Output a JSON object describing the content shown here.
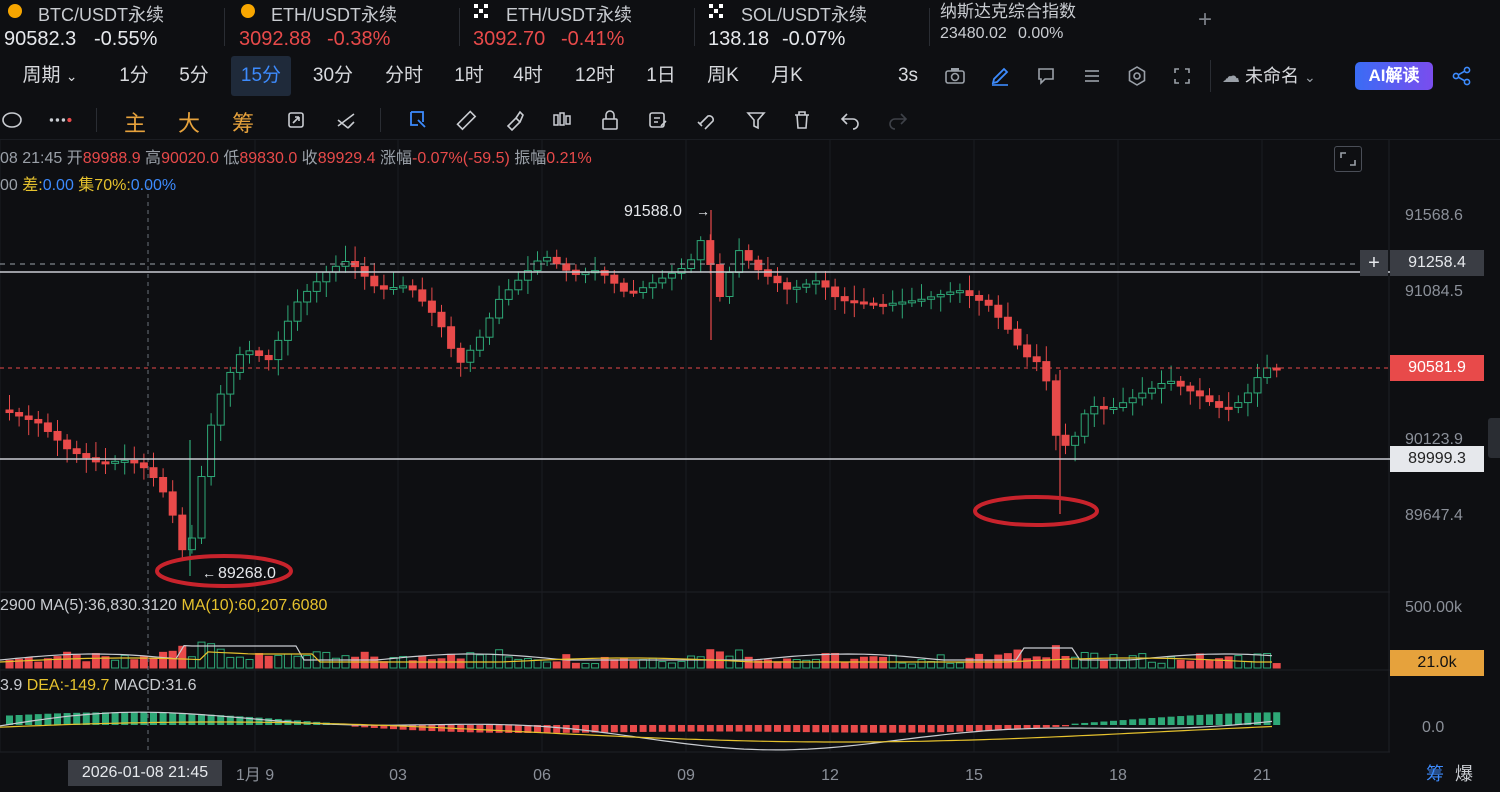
{
  "tickers": [
    {
      "name": "BTC/USDT永续",
      "price": "90582.3",
      "change": "-0.55%",
      "color": "#c9ccd1",
      "coin": "#f7a600"
    },
    {
      "name": "ETH/USDT永续",
      "price": "3092.88",
      "change": "-0.38%",
      "color": "#e84a4a",
      "coin": "#f7a600"
    },
    {
      "name": "ETH/USDT永续",
      "price": "3092.70",
      "change": "-0.41%",
      "color": "#e84a4a",
      "coin": "okx"
    },
    {
      "name": "SOL/USDT永续",
      "price": "138.18",
      "change": "-0.07%",
      "color": "#c9ccd1",
      "coin": "okx"
    },
    {
      "name": "纳斯达克综合指数",
      "price": "23480.02",
      "change": "0.00%",
      "color": "#c9ccd1",
      "coin": ""
    }
  ],
  "intervals": {
    "period_label": "周期",
    "items": [
      "1分",
      "5分",
      "15分",
      "30分",
      "分时",
      "1时",
      "4时",
      "12时",
      "1日",
      "周K",
      "月K"
    ],
    "active": "15分",
    "refresh": "3s",
    "save_name": "未命名",
    "ai_label": "AI解读"
  },
  "indicator_buttons": [
    "主",
    "大",
    "筹"
  ],
  "ohlc": {
    "time": "08 21:45",
    "open_label": "开",
    "open": "89988.9",
    "high_label": "高",
    "high": "90020.0",
    "low_label": "低",
    "low": "89830.0",
    "close_label": "收",
    "close": "89929.4",
    "chg_label": "涨幅",
    "chg": "-0.07%(-59.5)",
    "amp_label": "振幅",
    "amp": "0.21%"
  },
  "info2": {
    "prefix": "00",
    "diff_label": "差:",
    "diff": "0.00",
    "conc_label": "集70%:",
    "conc": "0.00%"
  },
  "price_axis": [
    "91568.6",
    "91084.5",
    "90123.9",
    "89647.4"
  ],
  "price_tags": {
    "line1": "91258.4",
    "current": "90581.9",
    "line2": "89999.3"
  },
  "annotations": {
    "high": "91588.0",
    "low": "89268.0"
  },
  "volume": {
    "prefix": "2900",
    "ma5": "MA(5):36,830.3120",
    "ma10": "MA(10):60,207.6080",
    "axis_top": "500.00k",
    "tag": "21.0k"
  },
  "macd": {
    "prefix": "3.9",
    "dea": "DEA:-149.7",
    "macd": "MACD:31.6",
    "axis_zero": "0.0"
  },
  "time_axis": [
    "1月 9",
    "03",
    "06",
    "09",
    "12",
    "15",
    "18",
    "21"
  ],
  "cursor_date": "2026-01-08 21:45",
  "bottom_icons": [
    "筹",
    "爆"
  ],
  "colors": {
    "up": "#2ea877",
    "down": "#e84a4a",
    "accent": "#3d8bfd",
    "yellow": "#e6c22e"
  }
}
